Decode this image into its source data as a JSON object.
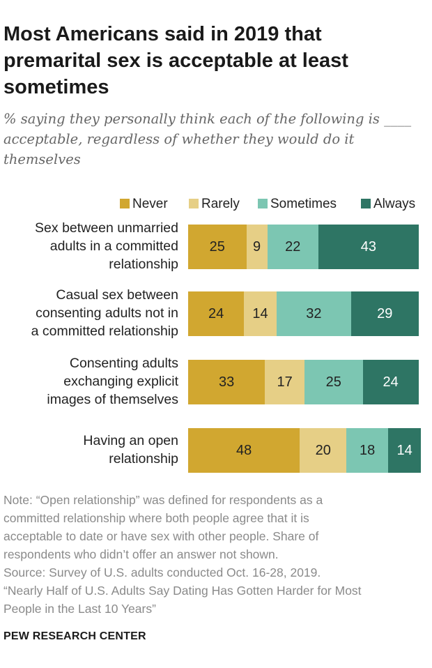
{
  "title": "Most Americans said in 2019 that premarital sex is acceptable at least sometimes",
  "subtitle": "% saying they personally think each of the following is ____ acceptable, regardless of whether they would do it themselves",
  "chart_data": {
    "type": "bar",
    "orientation": "horizontal",
    "stacked": true,
    "categories": [
      [
        "Sex between unmarried",
        "adults in a committed",
        "relationship"
      ],
      [
        "Casual sex between",
        "consenting adults not in",
        "a committed relationship"
      ],
      [
        "Consenting adults",
        "exchanging explicit",
        "images of themselves"
      ],
      [
        "Having an open",
        "relationship"
      ]
    ],
    "series": [
      {
        "name": "Never",
        "color": "#d1a730",
        "label_color": "#222222",
        "values": [
          25,
          24,
          33,
          48
        ]
      },
      {
        "name": "Rarely",
        "color": "#e6cf86",
        "label_color": "#222222",
        "values": [
          9,
          14,
          17,
          20
        ]
      },
      {
        "name": "Sometimes",
        "color": "#7cc6b2",
        "label_color": "#222222",
        "values": [
          22,
          32,
          25,
          18
        ]
      },
      {
        "name": "Always",
        "color": "#2e7564",
        "label_color": "#ffffff",
        "values": [
          43,
          29,
          24,
          14
        ]
      }
    ],
    "legend_position": "top-right",
    "grid": false
  },
  "note_lines": [
    "Note: “Open relationship” was defined for respondents as a",
    "committed relationship where both people agree that it is",
    "acceptable to date or have sex with other people. Share of",
    "respondents who didn’t offer an answer not shown.",
    "Source: Survey of U.S. adults conducted Oct. 16-28, 2019.",
    "“Nearly Half of U.S. Adults Say Dating Has Gotten Harder for Most",
    "People in the Last 10 Years”"
  ],
  "footer": "PEW RESEARCH CENTER"
}
